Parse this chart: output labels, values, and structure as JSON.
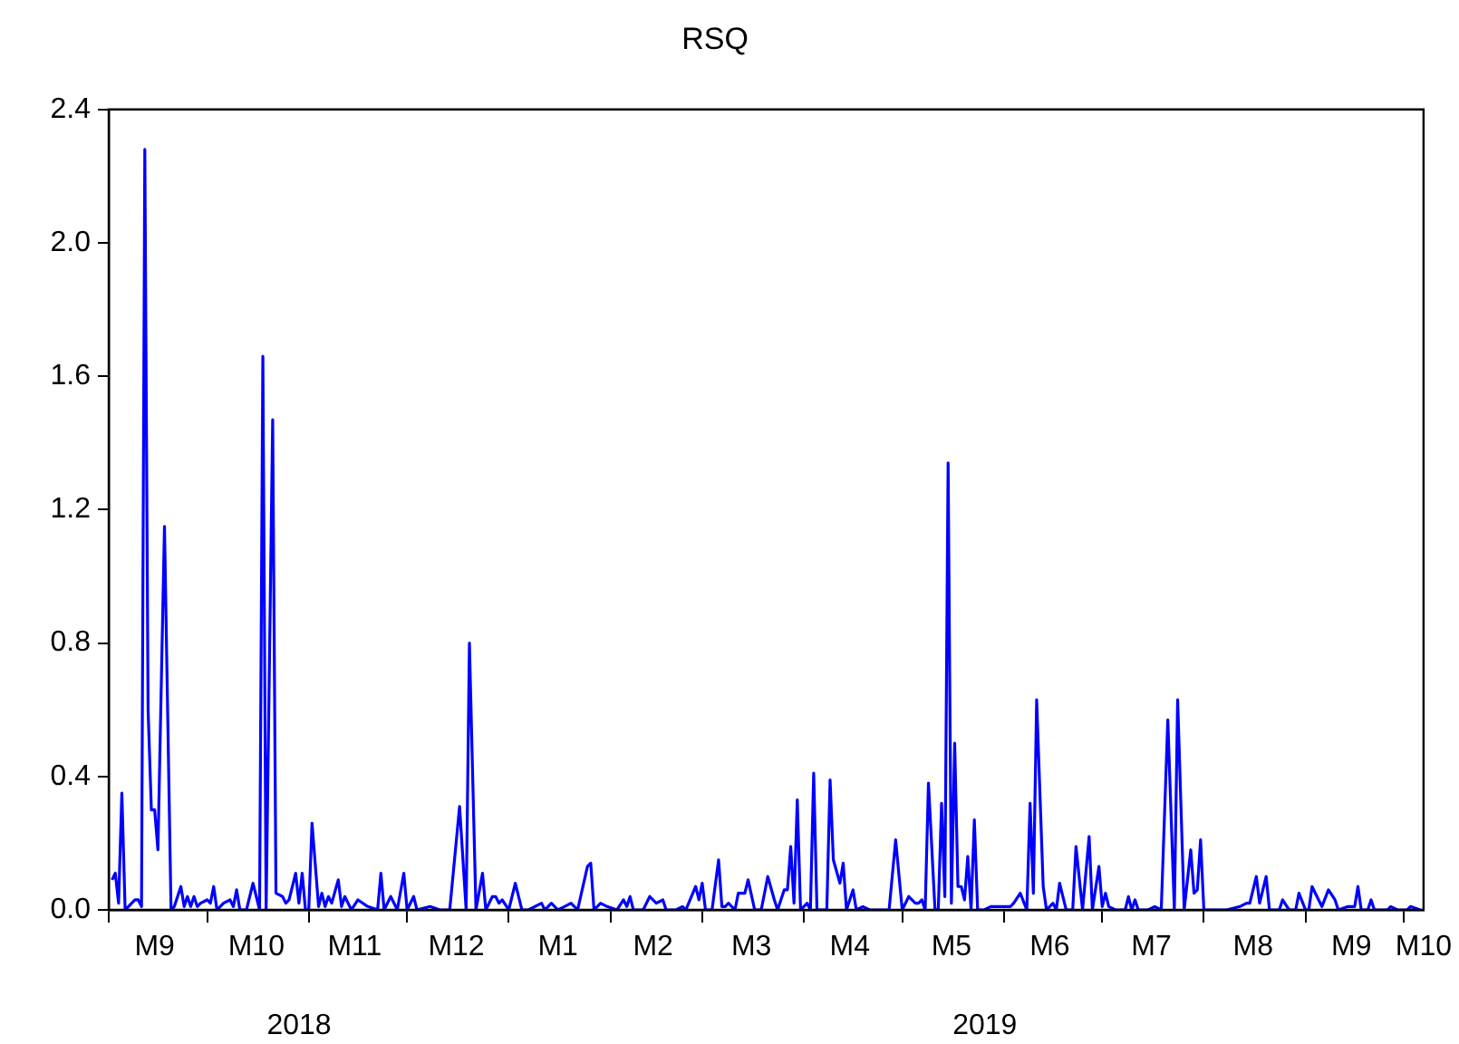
{
  "chart_data": {
    "type": "line",
    "title": "RSQ",
    "color": "#0000ff",
    "x": [
      "2018-09-02",
      "2018-09-03",
      "2018-09-04",
      "2018-09-05",
      "2018-09-06",
      "2018-09-07",
      "2018-09-09",
      "2018-09-10",
      "2018-09-11",
      "2018-09-12",
      "2018-09-13",
      "2018-09-14",
      "2018-09-15",
      "2018-09-16",
      "2018-09-18",
      "2018-09-20",
      "2018-09-21",
      "2018-09-23",
      "2018-09-24",
      "2018-09-25",
      "2018-09-26",
      "2018-09-27",
      "2018-09-28",
      "2018-09-29",
      "2018-10-01",
      "2018-10-02",
      "2018-10-03",
      "2018-10-04",
      "2018-10-06",
      "2018-10-08",
      "2018-10-09",
      "2018-10-10",
      "2018-10-11",
      "2018-10-13",
      "2018-10-15",
      "2018-10-17",
      "2018-10-18",
      "2018-10-19",
      "2018-10-21",
      "2018-10-22",
      "2018-10-24",
      "2018-10-25",
      "2018-10-26",
      "2018-10-28",
      "2018-10-29",
      "2018-10-30",
      "2018-10-31",
      "2018-11-01",
      "2018-11-02",
      "2018-11-04",
      "2018-11-05",
      "2018-11-06",
      "2018-11-07",
      "2018-11-08",
      "2018-11-10",
      "2018-11-11",
      "2018-11-12",
      "2018-11-14",
      "2018-11-16",
      "2018-11-19",
      "2018-11-22",
      "2018-11-23",
      "2018-11-24",
      "2018-11-26",
      "2018-11-28",
      "2018-11-30",
      "2018-12-01",
      "2018-12-03",
      "2018-12-04",
      "2018-12-08",
      "2018-12-11",
      "2018-12-14",
      "2018-12-17",
      "2018-12-19",
      "2018-12-20",
      "2018-12-22",
      "2018-12-24",
      "2018-12-25",
      "2018-12-27",
      "2018-12-28",
      "2018-12-29",
      "2018-12-30",
      "2019-01-01",
      "2019-01-03",
      "2019-01-05",
      "2019-01-07",
      "2019-01-11",
      "2019-01-12",
      "2019-01-14",
      "2019-01-16",
      "2019-01-18",
      "2019-01-20",
      "2019-01-22",
      "2019-01-25",
      "2019-01-26",
      "2019-01-27",
      "2019-01-29",
      "2019-01-31",
      "2019-02-03",
      "2019-02-05",
      "2019-02-06",
      "2019-02-07",
      "2019-02-08",
      "2019-02-11",
      "2019-02-13",
      "2019-02-15",
      "2019-02-17",
      "2019-02-18",
      "2019-02-21",
      "2019-02-23",
      "2019-02-24",
      "2019-02-27",
      "2019-02-28",
      "2019-03-01",
      "2019-03-02",
      "2019-03-04",
      "2019-03-06",
      "2019-03-07",
      "2019-03-08",
      "2019-03-09",
      "2019-03-11",
      "2019-03-12",
      "2019-03-14",
      "2019-03-15",
      "2019-03-17",
      "2019-03-19",
      "2019-03-21",
      "2019-03-23",
      "2019-03-24",
      "2019-03-26",
      "2019-03-27",
      "2019-03-28",
      "2019-03-29",
      "2019-03-30",
      "2019-03-31",
      "2019-04-02",
      "2019-04-03",
      "2019-04-04",
      "2019-04-05",
      "2019-04-08",
      "2019-04-09",
      "2019-04-10",
      "2019-04-12",
      "2019-04-13",
      "2019-04-14",
      "2019-04-16",
      "2019-04-17",
      "2019-04-19",
      "2019-04-21",
      "2019-04-27",
      "2019-04-29",
      "2019-05-01",
      "2019-05-03",
      "2019-05-05",
      "2019-05-06",
      "2019-05-07",
      "2019-05-08",
      "2019-05-09",
      "2019-05-11",
      "2019-05-12",
      "2019-05-13",
      "2019-05-14",
      "2019-05-15",
      "2019-05-16",
      "2019-05-17",
      "2019-05-18",
      "2019-05-19",
      "2019-05-20",
      "2019-05-21",
      "2019-05-22",
      "2019-05-23",
      "2019-05-24",
      "2019-05-26",
      "2019-05-28",
      "2019-05-30",
      "2019-06-03",
      "2019-06-04",
      "2019-06-06",
      "2019-06-08",
      "2019-06-09",
      "2019-06-10",
      "2019-06-11",
      "2019-06-13",
      "2019-06-14",
      "2019-06-16",
      "2019-06-17",
      "2019-06-18",
      "2019-06-20",
      "2019-06-22",
      "2019-06-23",
      "2019-06-25",
      "2019-06-27",
      "2019-06-28",
      "2019-06-30",
      "2019-07-01",
      "2019-07-02",
      "2019-07-03",
      "2019-07-05",
      "2019-07-08",
      "2019-07-09",
      "2019-07-10",
      "2019-07-11",
      "2019-07-12",
      "2019-07-15",
      "2019-07-17",
      "2019-07-19",
      "2019-07-21",
      "2019-07-23",
      "2019-07-24",
      "2019-07-26",
      "2019-07-28",
      "2019-07-29",
      "2019-07-30",
      "2019-07-31",
      "2019-08-01",
      "2019-08-08",
      "2019-08-12",
      "2019-08-14",
      "2019-08-15",
      "2019-08-17",
      "2019-08-18",
      "2019-08-20",
      "2019-08-21",
      "2019-08-24",
      "2019-08-25",
      "2019-08-27",
      "2019-08-29",
      "2019-08-30",
      "2019-09-01",
      "2019-09-02",
      "2019-09-03",
      "2019-09-05",
      "2019-09-06",
      "2019-09-08",
      "2019-09-10",
      "2019-09-11",
      "2019-09-14",
      "2019-09-16",
      "2019-09-17",
      "2019-09-18",
      "2019-09-20",
      "2019-09-21",
      "2019-09-22",
      "2019-09-26",
      "2019-09-27",
      "2019-09-29",
      "2019-10-02",
      "2019-10-03",
      "2019-10-06"
    ],
    "values": [
      0.09,
      0.11,
      0.02,
      0.35,
      0.0,
      0.01,
      0.03,
      0.03,
      0.01,
      2.28,
      0.6,
      0.3,
      0.3,
      0.18,
      1.15,
      0.0,
      0.01,
      0.07,
      0.01,
      0.04,
      0.01,
      0.04,
      0.01,
      0.02,
      0.03,
      0.02,
      0.07,
      0.0,
      0.02,
      0.03,
      0.01,
      0.06,
      0.0,
      0.0,
      0.08,
      0.0,
      1.66,
      0.0,
      1.47,
      0.05,
      0.04,
      0.02,
      0.03,
      0.11,
      0.02,
      0.11,
      0.0,
      0.0,
      0.26,
      0.01,
      0.05,
      0.01,
      0.04,
      0.02,
      0.09,
      0.01,
      0.04,
      0.0,
      0.03,
      0.01,
      0.0,
      0.11,
      0.0,
      0.04,
      0.0,
      0.11,
      0.0,
      0.04,
      0.0,
      0.01,
      0.0,
      0.0,
      0.31,
      0.0,
      0.8,
      0.0,
      0.11,
      0.0,
      0.04,
      0.04,
      0.02,
      0.03,
      0.0,
      0.08,
      0.0,
      0.0,
      0.02,
      0.0,
      0.02,
      0.0,
      0.01,
      0.02,
      0.0,
      0.13,
      0.14,
      0.0,
      0.02,
      0.01,
      0.0,
      0.03,
      0.01,
      0.04,
      0.0,
      0.0,
      0.04,
      0.02,
      0.03,
      0.0,
      0.0,
      0.01,
      0.0,
      0.07,
      0.03,
      0.08,
      0.0,
      0.0,
      0.15,
      0.01,
      0.01,
      0.02,
      0.0,
      0.05,
      0.05,
      0.09,
      0.0,
      0.0,
      0.1,
      0.03,
      0.0,
      0.06,
      0.06,
      0.19,
      0.02,
      0.33,
      0.0,
      0.02,
      0.0,
      0.41,
      0.0,
      0.0,
      0.39,
      0.15,
      0.08,
      0.14,
      0.0,
      0.06,
      0.0,
      0.01,
      0.0,
      0.0,
      0.21,
      0.0,
      0.04,
      0.02,
      0.02,
      0.03,
      0.0,
      0.38,
      0.0,
      0.0,
      0.32,
      0.04,
      1.34,
      0.02,
      0.5,
      0.07,
      0.07,
      0.03,
      0.16,
      0.0,
      0.27,
      0.0,
      0.0,
      0.01,
      0.01,
      0.01,
      0.02,
      0.05,
      0.0,
      0.32,
      0.05,
      0.63,
      0.07,
      0.0,
      0.02,
      0.0,
      0.08,
      0.0,
      0.0,
      0.19,
      0.0,
      0.22,
      0.0,
      0.13,
      0.01,
      0.05,
      0.01,
      0.0,
      0.0,
      0.04,
      0.0,
      0.03,
      0.0,
      0.0,
      0.01,
      0.0,
      0.57,
      0.0,
      0.63,
      0.0,
      0.18,
      0.05,
      0.06,
      0.21,
      0.0,
      0.0,
      0.01,
      0.02,
      0.02,
      0.1,
      0.02,
      0.1,
      0.0,
      0.0,
      0.03,
      0.0,
      0.0,
      0.05,
      0.0,
      0.0,
      0.07,
      0.03,
      0.01,
      0.06,
      0.03,
      0.0,
      0.01,
      0.01,
      0.07,
      0.0,
      0.0,
      0.03,
      0.0,
      0.0,
      0.01,
      0.0,
      0.0,
      0.01,
      0.0
    ],
    "xlim": [
      "2018-09-01",
      "2019-10-07"
    ],
    "xticks": [
      {
        "value": "2018-09-01",
        "label": null
      },
      {
        "value": "2018-09-15",
        "label": "M9"
      },
      {
        "value": "2018-10-01",
        "label": null
      },
      {
        "value": "2018-10-16",
        "label": "M10"
      },
      {
        "value": "2018-11-01",
        "label": null
      },
      {
        "value": "2018-11-15",
        "label": "M11"
      },
      {
        "value": "2018-12-01",
        "label": null
      },
      {
        "value": "2018-12-16",
        "label": "M12"
      },
      {
        "value": "2019-01-01",
        "label": null
      },
      {
        "value": "2019-01-16",
        "label": "M1"
      },
      {
        "value": "2019-02-01",
        "label": null
      },
      {
        "value": "2019-02-14",
        "label": "M2"
      },
      {
        "value": "2019-03-01",
        "label": null
      },
      {
        "value": "2019-03-16",
        "label": "M3"
      },
      {
        "value": "2019-04-01",
        "label": null
      },
      {
        "value": "2019-04-15",
        "label": "M4"
      },
      {
        "value": "2019-05-01",
        "label": null
      },
      {
        "value": "2019-05-16",
        "label": "M5"
      },
      {
        "value": "2019-06-01",
        "label": null
      },
      {
        "value": "2019-06-15",
        "label": "M6"
      },
      {
        "value": "2019-07-01",
        "label": null
      },
      {
        "value": "2019-07-16",
        "label": "M7"
      },
      {
        "value": "2019-08-01",
        "label": null
      },
      {
        "value": "2019-08-16",
        "label": "M8"
      },
      {
        "value": "2019-09-01",
        "label": null
      },
      {
        "value": "2019-09-15",
        "label": "M9"
      },
      {
        "value": "2019-10-01",
        "label": null
      },
      {
        "value": "2019-10-07",
        "label": "M10"
      }
    ],
    "ylim": [
      0,
      2.4
    ],
    "yticks": [
      {
        "value": 0,
        "label": "0.0"
      },
      {
        "value": 0.4,
        "label": "0.4"
      },
      {
        "value": 0.8,
        "label": "0.8"
      },
      {
        "value": 1.2,
        "label": "1.2"
      },
      {
        "value": 1.6,
        "label": "1.6"
      },
      {
        "value": 2.0,
        "label": "2.0"
      },
      {
        "value": 2.4,
        "label": "2.4"
      }
    ],
    "annotations": [
      "2018",
      "2019"
    ],
    "legend": false
  }
}
